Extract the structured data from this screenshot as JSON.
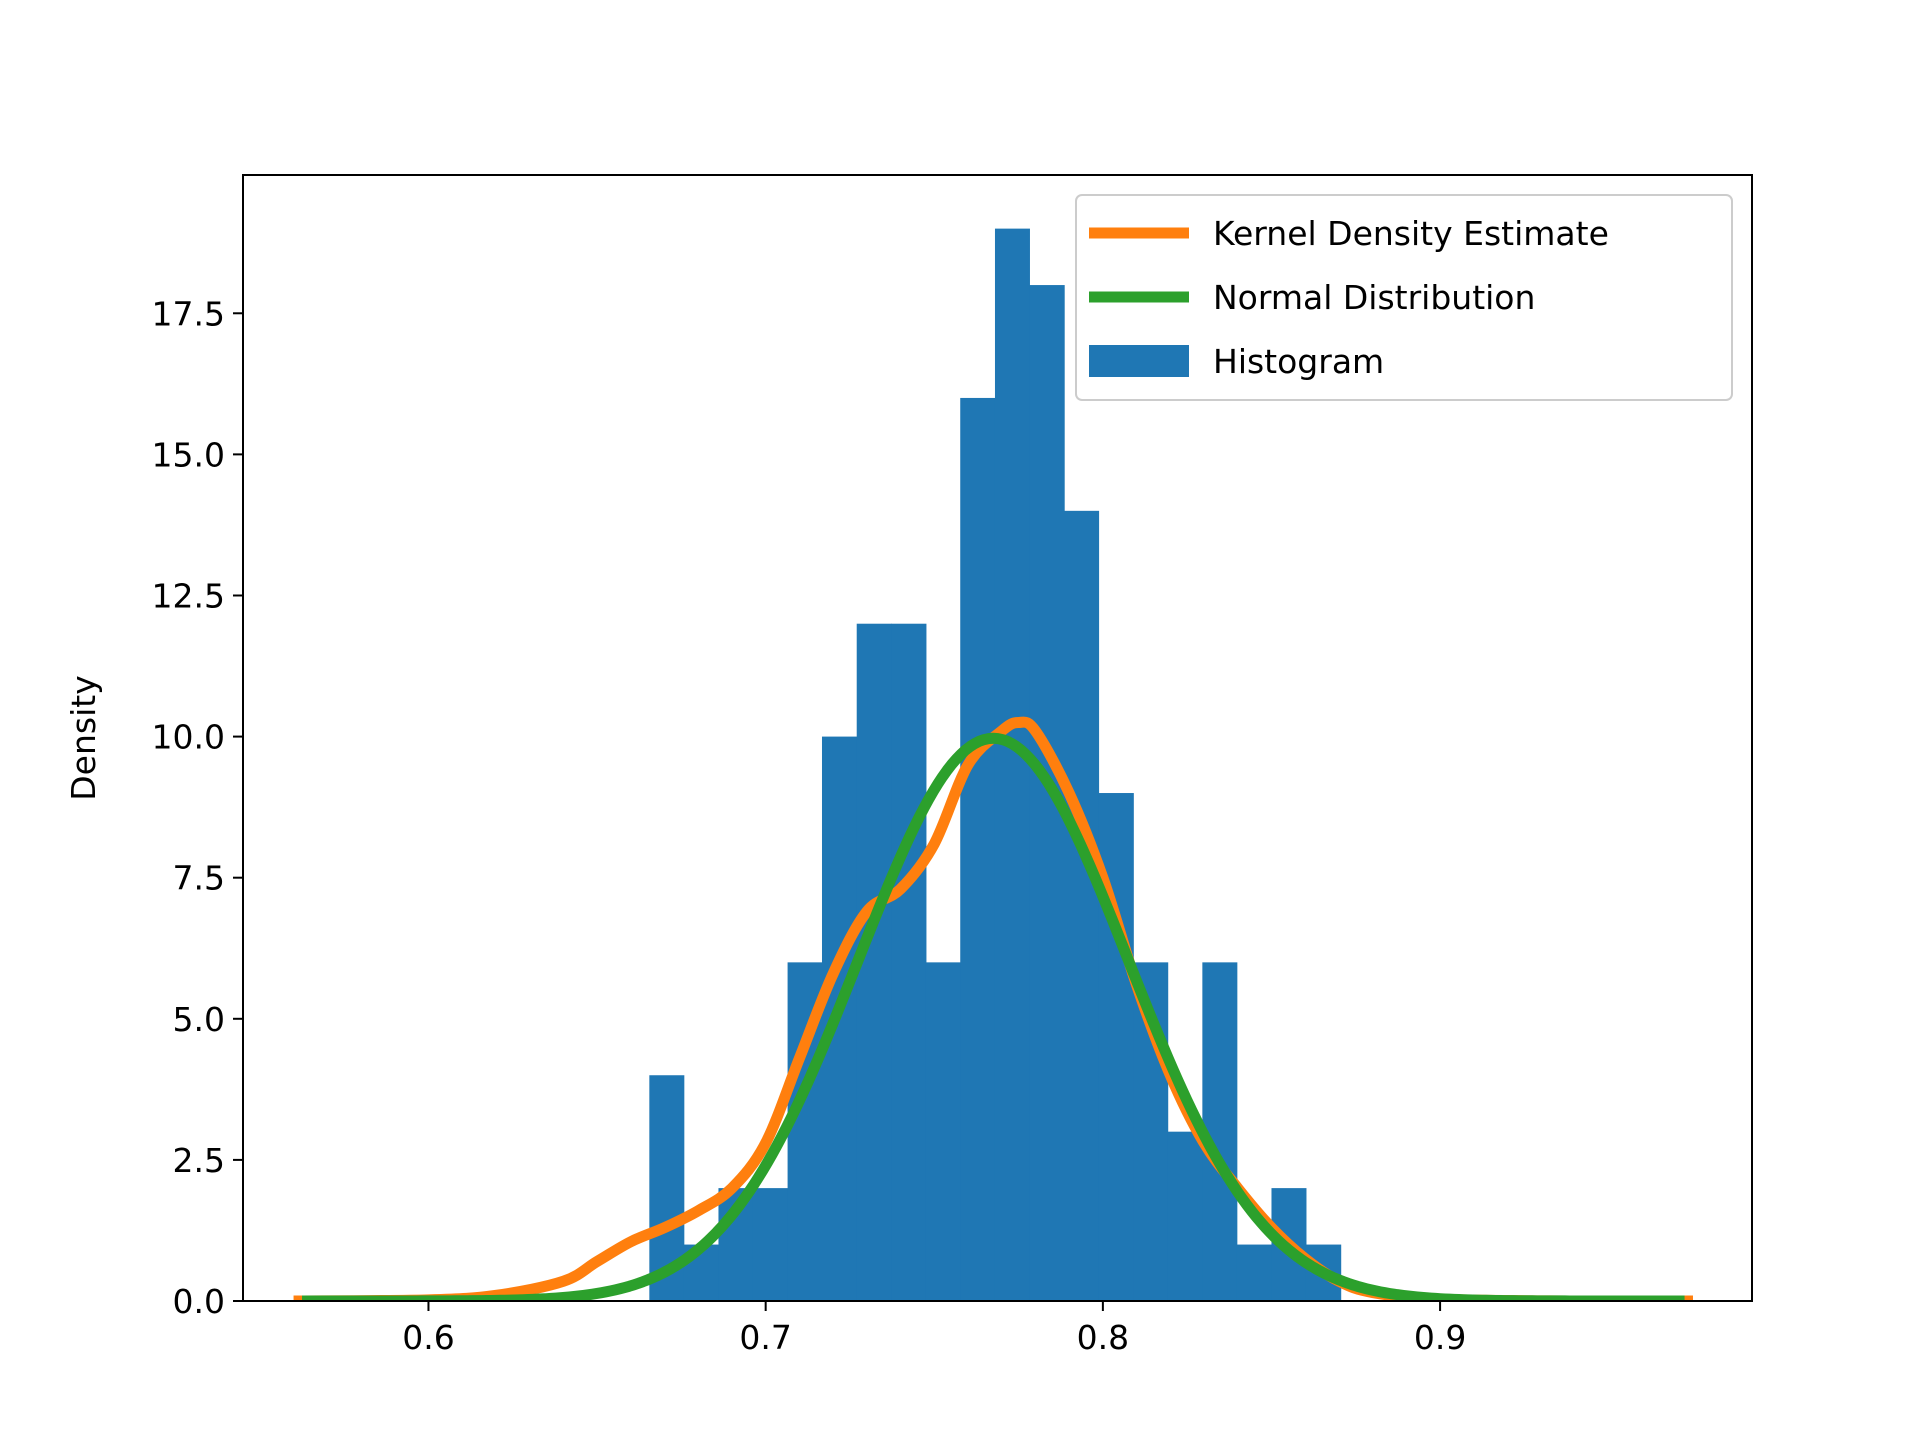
{
  "chart_data": {
    "type": "bar",
    "title": "",
    "xlabel": "",
    "ylabel": "Density",
    "xlim": [
      0.545,
      0.9925
    ],
    "ylim": [
      0,
      19.95
    ],
    "x_ticks": [
      0.6,
      0.7,
      0.8,
      0.9
    ],
    "x_tick_labels": [
      "0.6",
      "0.7",
      "0.8",
      "0.9"
    ],
    "y_ticks": [
      0,
      2.5,
      5,
      7.5,
      10,
      12.5,
      15,
      17.5
    ],
    "y_tick_labels": [
      "0.0",
      "2.5",
      "5.0",
      "7.5",
      "10.0",
      "12.5",
      "15.0",
      "17.5"
    ],
    "grid": false,
    "legend_position": "top-right",
    "histogram": {
      "name": "Histogram",
      "color": "#1f77b4",
      "bin_edges": [
        0.6655,
        0.6757,
        0.686,
        0.6962,
        0.7065,
        0.7167,
        0.727,
        0.7372,
        0.7475,
        0.7577,
        0.768,
        0.7782,
        0.7885,
        0.7987,
        0.809,
        0.8192,
        0.8295,
        0.8397,
        0.85,
        0.8602,
        0.8705
      ],
      "densities": [
        4,
        1,
        2,
        2,
        6,
        10,
        12,
        12,
        6,
        16,
        19,
        18,
        14,
        9,
        6,
        3,
        6,
        1,
        2,
        1
      ]
    },
    "kde": {
      "name": "Kernel Density Estimate",
      "color": "#ff7f0e",
      "x": [
        0.56,
        0.6,
        0.62,
        0.64,
        0.65,
        0.66,
        0.67,
        0.68,
        0.69,
        0.7,
        0.71,
        0.72,
        0.73,
        0.74,
        0.75,
        0.76,
        0.77,
        0.775,
        0.78,
        0.79,
        0.8,
        0.81,
        0.82,
        0.83,
        0.84,
        0.85,
        0.86,
        0.87,
        0.88,
        0.9,
        0.94,
        0.975
      ],
      "y": [
        0.0,
        0.02,
        0.1,
        0.35,
        0.7,
        1.05,
        1.3,
        1.6,
        2.0,
        2.8,
        4.3,
        5.8,
        6.9,
        7.3,
        8.1,
        9.5,
        10.1,
        10.25,
        10.1,
        9.0,
        7.5,
        5.6,
        4.0,
        2.8,
        2.0,
        1.3,
        0.75,
        0.35,
        0.15,
        0.03,
        0.0,
        0.0
      ]
    },
    "normal": {
      "name": "Normal Distribution",
      "color": "#2ca02c",
      "mean": 0.7675,
      "std": 0.04,
      "x_range": [
        0.5625,
        0.9725
      ],
      "peak": 9.97
    }
  }
}
